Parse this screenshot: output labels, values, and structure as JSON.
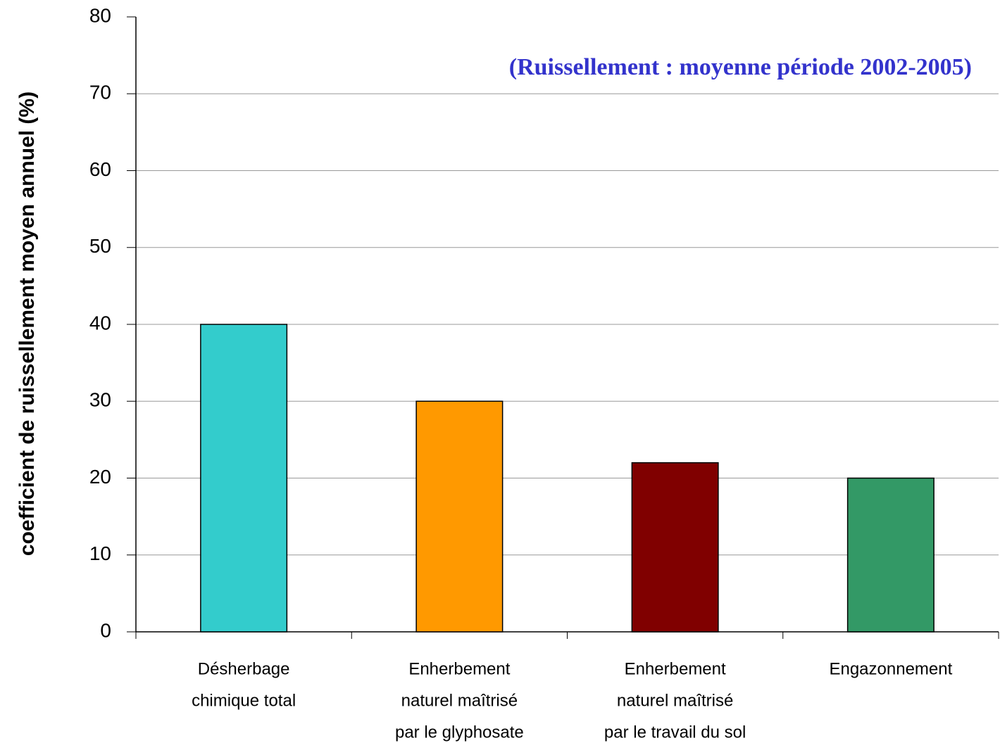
{
  "chart_data": {
    "type": "bar",
    "annotation": "(Ruissellement : moyenne période 2002-2005)",
    "y_label": "coefficient de ruissellement moyen annuel (%)",
    "categories": [
      [
        "Désherbage",
        "chimique total"
      ],
      [
        "Enherbement",
        "naturel maîtrisé",
        "par le glyphosate"
      ],
      [
        "Enherbement",
        "naturel maîtrisé",
        "par le travail du sol"
      ],
      [
        "Engazonnement"
      ]
    ],
    "values": [
      40,
      30,
      22,
      20
    ],
    "colors": [
      "#33cccc",
      "#ff9900",
      "#800000",
      "#339966"
    ],
    "ylim": [
      0,
      80
    ],
    "yticks": [
      0,
      10,
      20,
      30,
      40,
      50,
      60,
      70,
      80
    ],
    "grid": true
  }
}
